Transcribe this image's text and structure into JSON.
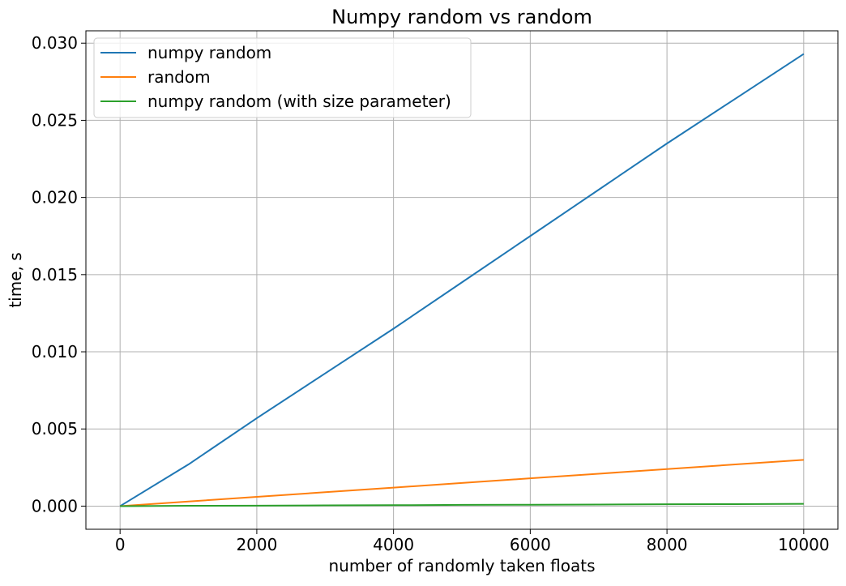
{
  "chart_data": {
    "type": "line",
    "title": "Numpy random vs random",
    "xlabel": "number of randomly taken floats",
    "ylabel": "time, s",
    "xlim": [
      -500,
      10500
    ],
    "ylim": [
      -0.0015,
      0.0308
    ],
    "xticks": [
      0,
      2000,
      4000,
      6000,
      8000,
      10000
    ],
    "yticks": [
      0.0,
      0.005,
      0.01,
      0.015,
      0.02,
      0.025,
      0.03
    ],
    "xtick_labels": [
      "0",
      "2000",
      "4000",
      "6000",
      "8000",
      "10000"
    ],
    "ytick_labels": [
      "0.000",
      "0.005",
      "0.010",
      "0.015",
      "0.020",
      "0.025",
      "0.030"
    ],
    "grid": true,
    "legend_position": "top-left",
    "series": [
      {
        "name": "numpy random",
        "color": "#1f77b4",
        "x": [
          0,
          1000,
          2000,
          3000,
          4000,
          5000,
          6000,
          7000,
          8000,
          9000,
          10000
        ],
        "y": [
          0.0,
          0.0027,
          0.0057,
          0.0086,
          0.0115,
          0.0145,
          0.0175,
          0.0205,
          0.0235,
          0.0264,
          0.0293
        ]
      },
      {
        "name": "random",
        "color": "#ff7f0e",
        "x": [
          0,
          1000,
          2000,
          3000,
          4000,
          5000,
          6000,
          7000,
          8000,
          9000,
          10000
        ],
        "y": [
          0.0,
          0.0003,
          0.0006,
          0.0009,
          0.0012,
          0.0015,
          0.0018,
          0.0021,
          0.0024,
          0.0027,
          0.003
        ]
      },
      {
        "name": "numpy random (with size parameter)",
        "color": "#2ca02c",
        "x": [
          0,
          1000,
          2000,
          3000,
          4000,
          5000,
          6000,
          7000,
          8000,
          9000,
          10000
        ],
        "y": [
          0.0,
          2e-05,
          3e-05,
          5e-05,
          6e-05,
          8e-05,
          9e-05,
          0.0001,
          0.00012,
          0.00013,
          0.00015
        ]
      }
    ]
  }
}
